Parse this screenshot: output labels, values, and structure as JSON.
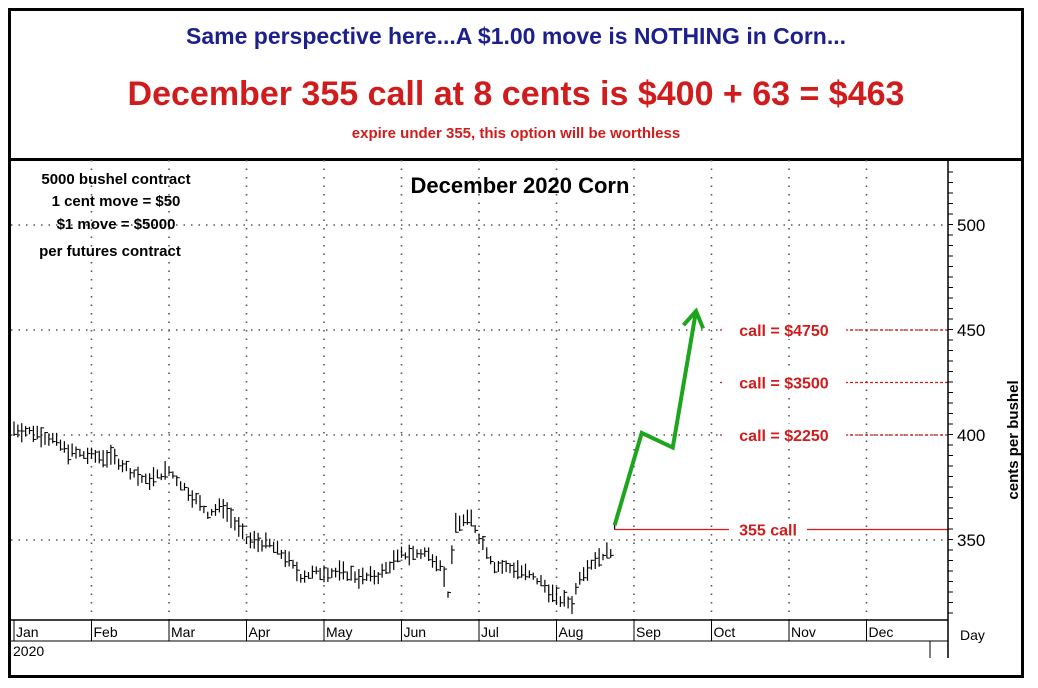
{
  "header": {
    "line1": "Same perspective here...A $1.00 move is NOTHING in Corn...",
    "line2": "December 355 call at 8 cents is $400 + 63 = $463",
    "line3": "expire under 355, this option will be worthless"
  },
  "contract_note": [
    "5000 bushel contract",
    "1 cent move = $50",
    "$1 move = $5000",
    "per futures contract"
  ],
  "colors": {
    "header_blue": "#1c1f8c",
    "red": "#d01c1c",
    "arrow_green": "#1ea51e",
    "bars": "#000000"
  },
  "chart_data": {
    "type": "bar",
    "subtype": "ohlc-price-bars",
    "title": "December 2020 Corn",
    "xlabel": "Day",
    "ylabel": "cents per bushel",
    "x_tick_labels": [
      "Jan",
      "Feb",
      "Mar",
      "Apr",
      "May",
      "Jun",
      "Jul",
      "Aug",
      "Sep",
      "Oct",
      "Nov",
      "Dec"
    ],
    "year_label": "2020",
    "y_ticks": [
      350,
      400,
      450,
      500
    ],
    "ylim": [
      310,
      530
    ],
    "grid": true,
    "price_path": [
      {
        "t": 0.0,
        "v": 403
      },
      {
        "t": 0.3,
        "v": 401
      },
      {
        "t": 0.5,
        "v": 398
      },
      {
        "t": 0.7,
        "v": 392
      },
      {
        "t": 1.0,
        "v": 390
      },
      {
        "t": 1.3,
        "v": 389
      },
      {
        "t": 1.5,
        "v": 383
      },
      {
        "t": 1.7,
        "v": 378
      },
      {
        "t": 2.0,
        "v": 383
      },
      {
        "t": 2.3,
        "v": 371
      },
      {
        "t": 2.5,
        "v": 363
      },
      {
        "t": 2.7,
        "v": 366
      },
      {
        "t": 3.0,
        "v": 350
      },
      {
        "t": 3.3,
        "v": 348
      },
      {
        "t": 3.5,
        "v": 342
      },
      {
        "t": 3.7,
        "v": 333
      },
      {
        "t": 4.0,
        "v": 335
      },
      {
        "t": 4.3,
        "v": 334
      },
      {
        "t": 4.5,
        "v": 332
      },
      {
        "t": 4.7,
        "v": 333
      },
      {
        "t": 5.0,
        "v": 343
      },
      {
        "t": 5.3,
        "v": 344
      },
      {
        "t": 5.5,
        "v": 339
      },
      {
        "t": 5.6,
        "v": 325
      },
      {
        "t": 5.7,
        "v": 358
      },
      {
        "t": 5.9,
        "v": 360
      },
      {
        "t": 6.0,
        "v": 352
      },
      {
        "t": 6.2,
        "v": 338
      },
      {
        "t": 6.5,
        "v": 336
      },
      {
        "t": 6.8,
        "v": 330
      },
      {
        "t": 7.0,
        "v": 322
      },
      {
        "t": 7.2,
        "v": 320
      },
      {
        "t": 7.3,
        "v": 333
      },
      {
        "t": 7.5,
        "v": 341
      },
      {
        "t": 7.7,
        "v": 345
      },
      {
        "t": 7.75,
        "v": 355
      }
    ],
    "strike_lines": [
      {
        "label": "call = $4750",
        "value": 450
      },
      {
        "label": "call = $3500",
        "value": 425
      },
      {
        "label": "call = $2250",
        "value": 400
      },
      {
        "label": "355 call",
        "value": 355
      }
    ],
    "projection_arrow": [
      {
        "t": 7.75,
        "v": 357
      },
      {
        "t": 8.1,
        "v": 401
      },
      {
        "t": 8.5,
        "v": 394
      },
      {
        "t": 8.8,
        "v": 459
      }
    ]
  }
}
